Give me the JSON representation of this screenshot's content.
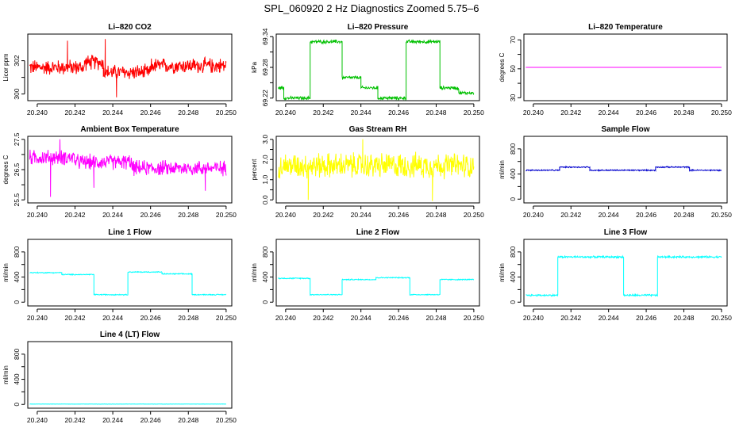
{
  "figure": {
    "title": "SPL_060920  2 Hz Diagnostics Zoomed 5.75–6"
  },
  "chart_data": [
    {
      "id": "co2",
      "type": "line",
      "title": "Li–820 CO2",
      "ylabel": "Licor ppm",
      "xlabel": "",
      "color": "#ff0000",
      "xlim": [
        20.2395,
        20.2503
      ],
      "ylim": [
        299.6,
        303.6
      ],
      "yticks": [
        300,
        301,
        302
      ],
      "ytick_labels": [
        "300",
        "",
        "302"
      ],
      "xticks": [
        20.24,
        20.242,
        20.244,
        20.246,
        20.248,
        20.25
      ],
      "xtick_labels": [
        "20.240",
        "20.242",
        "20.244",
        "20.246",
        "20.248",
        "20.250"
      ],
      "series": [
        {
          "name": "CO2",
          "segments": [
            {
              "x": [
                20.2396,
                20.2425
              ],
              "level": 301.6
            },
            {
              "x": [
                20.2425,
                20.2435
              ],
              "level": 301.9
            },
            {
              "x": [
                20.2435,
                20.246
              ],
              "level": 301.3
            },
            {
              "x": [
                20.246,
                20.25
              ],
              "level": 301.7
            }
          ],
          "noise": 0.55,
          "spikes": [
            [
              20.2442,
              299.8
            ],
            [
              20.2416,
              303.2
            ],
            [
              20.2436,
              303.3
            ]
          ]
        }
      ]
    },
    {
      "id": "pressure",
      "type": "line",
      "title": "Li–820 Pressure",
      "ylabel": "kPa",
      "xlabel": "",
      "color": "#00c000",
      "xlim": [
        20.2395,
        20.2503
      ],
      "ylim": [
        69.215,
        69.345
      ],
      "yticks": [
        69.22,
        69.25,
        69.28,
        69.31,
        69.34
      ],
      "ytick_labels": [
        "69.22",
        "",
        "69.28",
        "",
        "69.34"
      ],
      "xticks": [
        20.24,
        20.242,
        20.244,
        20.246,
        20.248,
        20.25
      ],
      "xtick_labels": [
        "20.240",
        "20.242",
        "20.244",
        "20.246",
        "20.248",
        "20.250"
      ],
      "series": [
        {
          "name": "Pressure",
          "segments": [
            {
              "x": [
                20.2396,
                20.2399
              ],
              "level": 69.24
            },
            {
              "x": [
                20.2399,
                20.2413
              ],
              "level": 69.22
            },
            {
              "x": [
                20.2413,
                20.243
              ],
              "level": 69.33
            },
            {
              "x": [
                20.243,
                20.244
              ],
              "level": 69.26
            },
            {
              "x": [
                20.244,
                20.2449
              ],
              "level": 69.24
            },
            {
              "x": [
                20.2449,
                20.2464
              ],
              "level": 69.22
            },
            {
              "x": [
                20.2464,
                20.2482
              ],
              "level": 69.33
            },
            {
              "x": [
                20.2482,
                20.2492
              ],
              "level": 69.24
            },
            {
              "x": [
                20.2492,
                20.25
              ],
              "level": 69.23
            }
          ],
          "noise": 0.004,
          "spikes": []
        }
      ]
    },
    {
      "id": "licor-temp",
      "type": "line",
      "title": "Li–820 Temperature",
      "ylabel": "degrees C",
      "xlabel": "",
      "color": "#ff00ff",
      "xlim": [
        20.2395,
        20.2503
      ],
      "ylim": [
        28,
        74
      ],
      "yticks": [
        30,
        40,
        50,
        60,
        70
      ],
      "ytick_labels": [
        "30",
        "",
        "50",
        "",
        "70"
      ],
      "xticks": [
        20.24,
        20.242,
        20.244,
        20.246,
        20.248,
        20.25
      ],
      "xtick_labels": [
        "20.240",
        "20.242",
        "20.244",
        "20.246",
        "20.248",
        "20.250"
      ],
      "series": [
        {
          "name": "Temperature",
          "segments": [
            {
              "x": [
                20.2396,
                20.25
              ],
              "level": 51.0
            }
          ],
          "noise": 0,
          "spikes": []
        }
      ]
    },
    {
      "id": "box-temp",
      "type": "line",
      "title": "Ambient Box Temperature",
      "ylabel": "degrees C",
      "xlabel": "",
      "color": "#ff00ff",
      "xlim": [
        20.2395,
        20.2503
      ],
      "ylim": [
        25.4,
        27.6
      ],
      "yticks": [
        25.5,
        26.0,
        26.5,
        27.0,
        27.5
      ],
      "ytick_labels": [
        "25.5",
        "",
        "26.5",
        "",
        "27.5"
      ],
      "xticks": [
        20.24,
        20.242,
        20.244,
        20.246,
        20.248,
        20.25
      ],
      "xtick_labels": [
        "20.240",
        "20.242",
        "20.244",
        "20.246",
        "20.248",
        "20.250"
      ],
      "series": [
        {
          "name": "Box Temperature",
          "segments": [
            {
              "x": [
                20.2396,
                20.242
              ],
              "level": 26.9
            },
            {
              "x": [
                20.242,
                20.245
              ],
              "level": 26.75
            },
            {
              "x": [
                20.245,
                20.25
              ],
              "level": 26.55
            }
          ],
          "noise": 0.3,
          "spikes": [
            [
              20.2407,
              25.6
            ],
            [
              20.2489,
              25.8
            ],
            [
              20.243,
              25.9
            ],
            [
              20.2412,
              27.5
            ]
          ]
        }
      ]
    },
    {
      "id": "rh",
      "type": "line",
      "title": "Gas Stream RH",
      "ylabel": "percent",
      "xlabel": "",
      "color": "#ffff00",
      "xlim": [
        20.2395,
        20.2503
      ],
      "ylim": [
        -0.15,
        3.15
      ],
      "yticks": [
        0.0,
        0.5,
        1.0,
        1.5,
        2.0,
        2.5,
        3.0
      ],
      "ytick_labels": [
        "0.0",
        "",
        "1.0",
        "",
        "2.0",
        "",
        "3.0"
      ],
      "xticks": [
        20.24,
        20.242,
        20.244,
        20.246,
        20.248,
        20.25
      ],
      "xtick_labels": [
        "20.240",
        "20.242",
        "20.244",
        "20.246",
        "20.248",
        "20.250"
      ],
      "series": [
        {
          "name": "RH",
          "segments": [
            {
              "x": [
                20.2396,
                20.25
              ],
              "level": 1.7
            }
          ],
          "noise": 0.75,
          "spikes": [
            [
              20.2412,
              0.0
            ],
            [
              20.2478,
              -0.05
            ],
            [
              20.2441,
              3.0
            ]
          ]
        }
      ]
    },
    {
      "id": "sample-flow",
      "type": "line",
      "title": "Sample Flow",
      "ylabel": "ml/min",
      "xlabel": "",
      "color": "#0000cd",
      "xlim": [
        20.2395,
        20.2503
      ],
      "ylim": [
        -60,
        1000
      ],
      "yticks": [
        0,
        200,
        400,
        600,
        800
      ],
      "ytick_labels": [
        "0",
        "",
        "400",
        "",
        "800"
      ],
      "xticks": [
        20.24,
        20.242,
        20.244,
        20.246,
        20.248,
        20.25
      ],
      "xtick_labels": [
        "20.240",
        "20.242",
        "20.244",
        "20.246",
        "20.248",
        "20.250"
      ],
      "series": [
        {
          "name": "Sample Flow",
          "segments": [
            {
              "x": [
                20.2396,
                20.2414
              ],
              "level": 460
            },
            {
              "x": [
                20.2414,
                20.243
              ],
              "level": 510
            },
            {
              "x": [
                20.243,
                20.2465
              ],
              "level": 460
            },
            {
              "x": [
                20.2465,
                20.2483
              ],
              "level": 510
            },
            {
              "x": [
                20.2483,
                20.25
              ],
              "level": 460
            }
          ],
          "noise": 12,
          "spikes": []
        }
      ]
    },
    {
      "id": "line1",
      "type": "line",
      "title": "Line 1 Flow",
      "ylabel": "ml/min",
      "xlabel": "",
      "color": "#00ffff",
      "xlim": [
        20.2395,
        20.2503
      ],
      "ylim": [
        -60,
        1000
      ],
      "yticks": [
        0,
        200,
        400,
        600,
        800
      ],
      "ytick_labels": [
        "0",
        "",
        "400",
        "",
        "800"
      ],
      "xticks": [
        20.24,
        20.242,
        20.244,
        20.246,
        20.248,
        20.25
      ],
      "xtick_labels": [
        "20.240",
        "20.242",
        "20.244",
        "20.246",
        "20.248",
        "20.250"
      ],
      "series": [
        {
          "name": "Line 1",
          "segments": [
            {
              "x": [
                20.2396,
                20.2413
              ],
              "level": 470
            },
            {
              "x": [
                20.2413,
                20.243
              ],
              "level": 440
            },
            {
              "x": [
                20.243,
                20.2448
              ],
              "level": 120
            },
            {
              "x": [
                20.2448,
                20.2466
              ],
              "level": 480
            },
            {
              "x": [
                20.2466,
                20.2482
              ],
              "level": 450
            },
            {
              "x": [
                20.2482,
                20.25
              ],
              "level": 120
            }
          ],
          "noise": 10,
          "spikes": []
        }
      ]
    },
    {
      "id": "line2",
      "type": "line",
      "title": "Line 2 Flow",
      "ylabel": "ml/min",
      "xlabel": "",
      "color": "#00ffff",
      "xlim": [
        20.2395,
        20.2503
      ],
      "ylim": [
        -60,
        1000
      ],
      "yticks": [
        0,
        200,
        400,
        600,
        800
      ],
      "ytick_labels": [
        "0",
        "",
        "400",
        "",
        "800"
      ],
      "xticks": [
        20.24,
        20.242,
        20.244,
        20.246,
        20.248,
        20.25
      ],
      "xtick_labels": [
        "20.240",
        "20.242",
        "20.244",
        "20.246",
        "20.248",
        "20.250"
      ],
      "series": [
        {
          "name": "Line 2",
          "segments": [
            {
              "x": [
                20.2396,
                20.2413
              ],
              "level": 380
            },
            {
              "x": [
                20.2413,
                20.243
              ],
              "level": 120
            },
            {
              "x": [
                20.243,
                20.2448
              ],
              "level": 360
            },
            {
              "x": [
                20.2448,
                20.2466
              ],
              "level": 390
            },
            {
              "x": [
                20.2466,
                20.2482
              ],
              "level": 120
            },
            {
              "x": [
                20.2482,
                20.25
              ],
              "level": 360
            }
          ],
          "noise": 10,
          "spikes": []
        }
      ]
    },
    {
      "id": "line3",
      "type": "line",
      "title": "Line 3 Flow",
      "ylabel": "ml/min",
      "xlabel": "",
      "color": "#00ffff",
      "xlim": [
        20.2395,
        20.2503
      ],
      "ylim": [
        -60,
        1000
      ],
      "yticks": [
        0,
        200,
        400,
        600,
        800
      ],
      "ytick_labels": [
        "0",
        "",
        "400",
        "",
        "800"
      ],
      "xticks": [
        20.24,
        20.242,
        20.244,
        20.246,
        20.248,
        20.25
      ],
      "xtick_labels": [
        "20.240",
        "20.242",
        "20.244",
        "20.246",
        "20.248",
        "20.250"
      ],
      "series": [
        {
          "name": "Line 3",
          "segments": [
            {
              "x": [
                20.2396,
                20.2413
              ],
              "level": 110
            },
            {
              "x": [
                20.2413,
                20.2448
              ],
              "level": 720
            },
            {
              "x": [
                20.2448,
                20.2466
              ],
              "level": 110
            },
            {
              "x": [
                20.2466,
                20.25
              ],
              "level": 720
            }
          ],
          "noise": 18,
          "spikes": []
        }
      ]
    },
    {
      "id": "line4",
      "type": "line",
      "title": "Line 4 (LT) Flow",
      "ylabel": "ml/min",
      "xlabel": "",
      "color": "#00ffff",
      "xlim": [
        20.2395,
        20.2503
      ],
      "ylim": [
        -60,
        1000
      ],
      "yticks": [
        0,
        200,
        400,
        600,
        800
      ],
      "ytick_labels": [
        "0",
        "",
        "400",
        "",
        "800"
      ],
      "xticks": [
        20.24,
        20.242,
        20.244,
        20.246,
        20.248,
        20.25
      ],
      "xtick_labels": [
        "20.240",
        "20.242",
        "20.244",
        "20.246",
        "20.248",
        "20.250"
      ],
      "series": [
        {
          "name": "Line 4",
          "segments": [
            {
              "x": [
                20.2396,
                20.25
              ],
              "level": 5
            }
          ],
          "noise": 2,
          "spikes": []
        }
      ]
    }
  ]
}
